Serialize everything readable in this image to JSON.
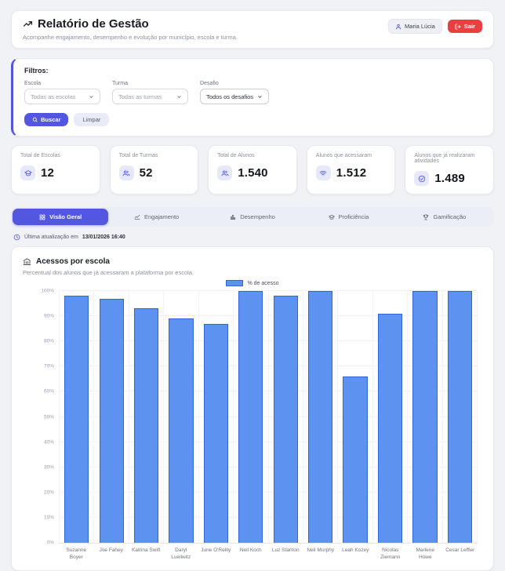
{
  "header": {
    "title": "Relatório de Gestão",
    "subtitle": "Acompanhe engajamento, desempenho e evolução por município, escola e turma.",
    "user_name": "Maria Lúcia",
    "logout_label": "Sair"
  },
  "filters": {
    "title": "Filtros:",
    "fields": [
      {
        "label": "Escola",
        "value": "Todas as escolas"
      },
      {
        "label": "Turma",
        "value": "Todas as turmas"
      },
      {
        "label": "Desafio",
        "value": "Todos os desafios"
      }
    ],
    "search_label": "Buscar",
    "clear_label": "Limpar"
  },
  "stats": {
    "cards": [
      {
        "label": "Total de Escolas",
        "value": "12",
        "icon": "graduation-cap-icon"
      },
      {
        "label": "Total de Turmas",
        "value": "52",
        "icon": "users-icon"
      },
      {
        "label": "Total de Alunos",
        "value": "1.540",
        "icon": "users-group-icon"
      },
      {
        "label": "Alunos que acessaram",
        "value": "1.512",
        "icon": "wifi-icon"
      },
      {
        "label": "Alunos que já realizaram atividades",
        "value": "1.489",
        "icon": "check-circle-icon"
      }
    ]
  },
  "tabs": [
    {
      "label": "Visão Geral",
      "icon": "grid-icon",
      "active": true
    },
    {
      "label": "Engajamento",
      "icon": "line-chart-icon",
      "active": false
    },
    {
      "label": "Desempenho",
      "icon": "bar-chart-icon",
      "active": false
    },
    {
      "label": "Proficiência",
      "icon": "graduation-cap-icon",
      "active": false
    },
    {
      "label": "Gamificação",
      "icon": "trophy-icon",
      "active": false
    }
  ],
  "status": {
    "prefix": "Última atualização em",
    "datetime": "13/01/2026 16:40"
  },
  "chart_card": {
    "title": "Acessos por escola",
    "subtitle": "Percentual dos alunos que já acessaram a plataforma por escola."
  },
  "chart_data": {
    "type": "bar",
    "title": "Acessos por escola",
    "categories": [
      "Suzanne Boyer",
      "Joe Fahey",
      "Katrina Swift",
      "Daryl Lueilwitz",
      "June O'Reilly",
      "Neil Koch",
      "Luz Stanton",
      "Neil Murphy",
      "Leah Kozey",
      "Nicolas Ziemann",
      "Marlene Howe",
      "Cesar Leffler"
    ],
    "values": [
      98,
      97,
      93,
      89,
      87,
      100,
      98,
      100,
      66,
      91,
      100,
      100
    ],
    "series_label": "% de acesso",
    "xlabel": "",
    "ylabel": "",
    "ylim": [
      0,
      100
    ],
    "ytick_step": 10,
    "ytick_suffix": "%",
    "grid": true,
    "legend_position": "top-center",
    "bar_color": "#5e92f0",
    "bar_border_color": "#3064d8"
  }
}
